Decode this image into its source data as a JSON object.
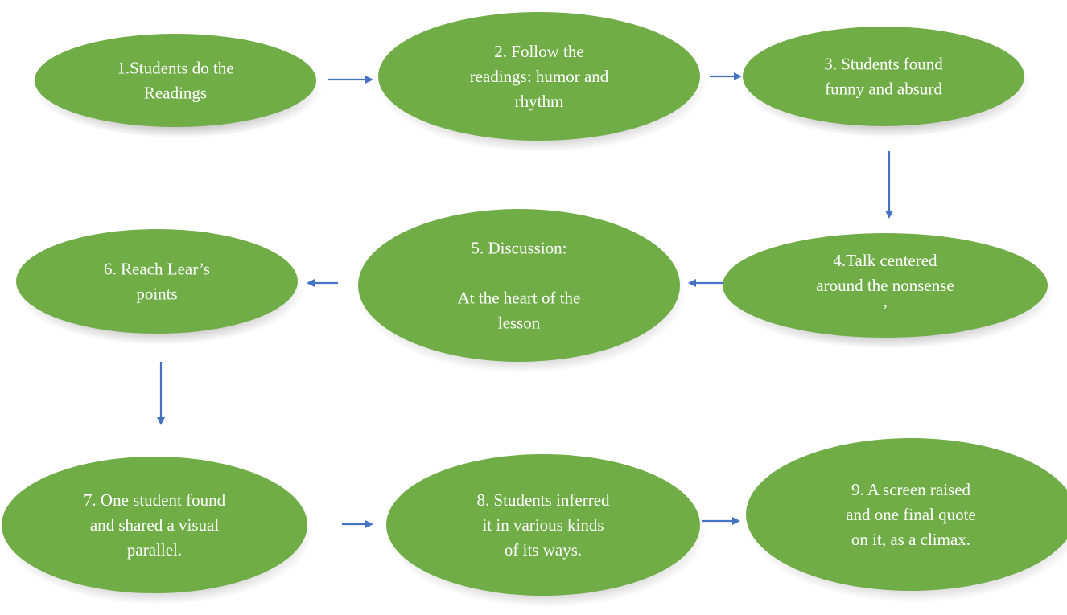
{
  "colors": {
    "node_fill": "#70AD47",
    "node_shadow": "#8c8c8c",
    "node_text": "#ffffff",
    "arrow": "#4472C4"
  },
  "nodes": [
    {
      "id": "n1",
      "lines": [
        "1.Students do the",
        "Readings"
      ]
    },
    {
      "id": "n2",
      "lines": [
        "2. Follow the",
        "readings: humor and",
        "rhythm"
      ]
    },
    {
      "id": "n3",
      "lines": [
        "3. Students found",
        "funny and absurd"
      ]
    },
    {
      "id": "n4",
      "lines": [
        "4.Talk centered",
        "around the nonsense",
        "’"
      ]
    },
    {
      "id": "n5",
      "lines": [
        "5. Discussion:",
        "",
        "At the heart of the",
        "lesson"
      ]
    },
    {
      "id": "n6",
      "lines": [
        "6. Reach Lear’s",
        "points"
      ]
    },
    {
      "id": "n7",
      "lines": [
        "7. One student found",
        "and shared a visual",
        "parallel."
      ]
    },
    {
      "id": "n8",
      "lines": [
        "8. Students inferred",
        "it in various kinds",
        "of its ways."
      ]
    },
    {
      "id": "n9",
      "lines": [
        "9. A screen raised",
        "and one final quote",
        "on it, as a climax."
      ]
    }
  ],
  "edges": [
    {
      "from": "n1",
      "to": "n2"
    },
    {
      "from": "n2",
      "to": "n3"
    },
    {
      "from": "n3",
      "to": "n4"
    },
    {
      "from": "n4",
      "to": "n5"
    },
    {
      "from": "n5",
      "to": "n6"
    },
    {
      "from": "n6",
      "to": "n7"
    },
    {
      "from": "n7",
      "to": "n8"
    },
    {
      "from": "n8",
      "to": "n9"
    }
  ]
}
